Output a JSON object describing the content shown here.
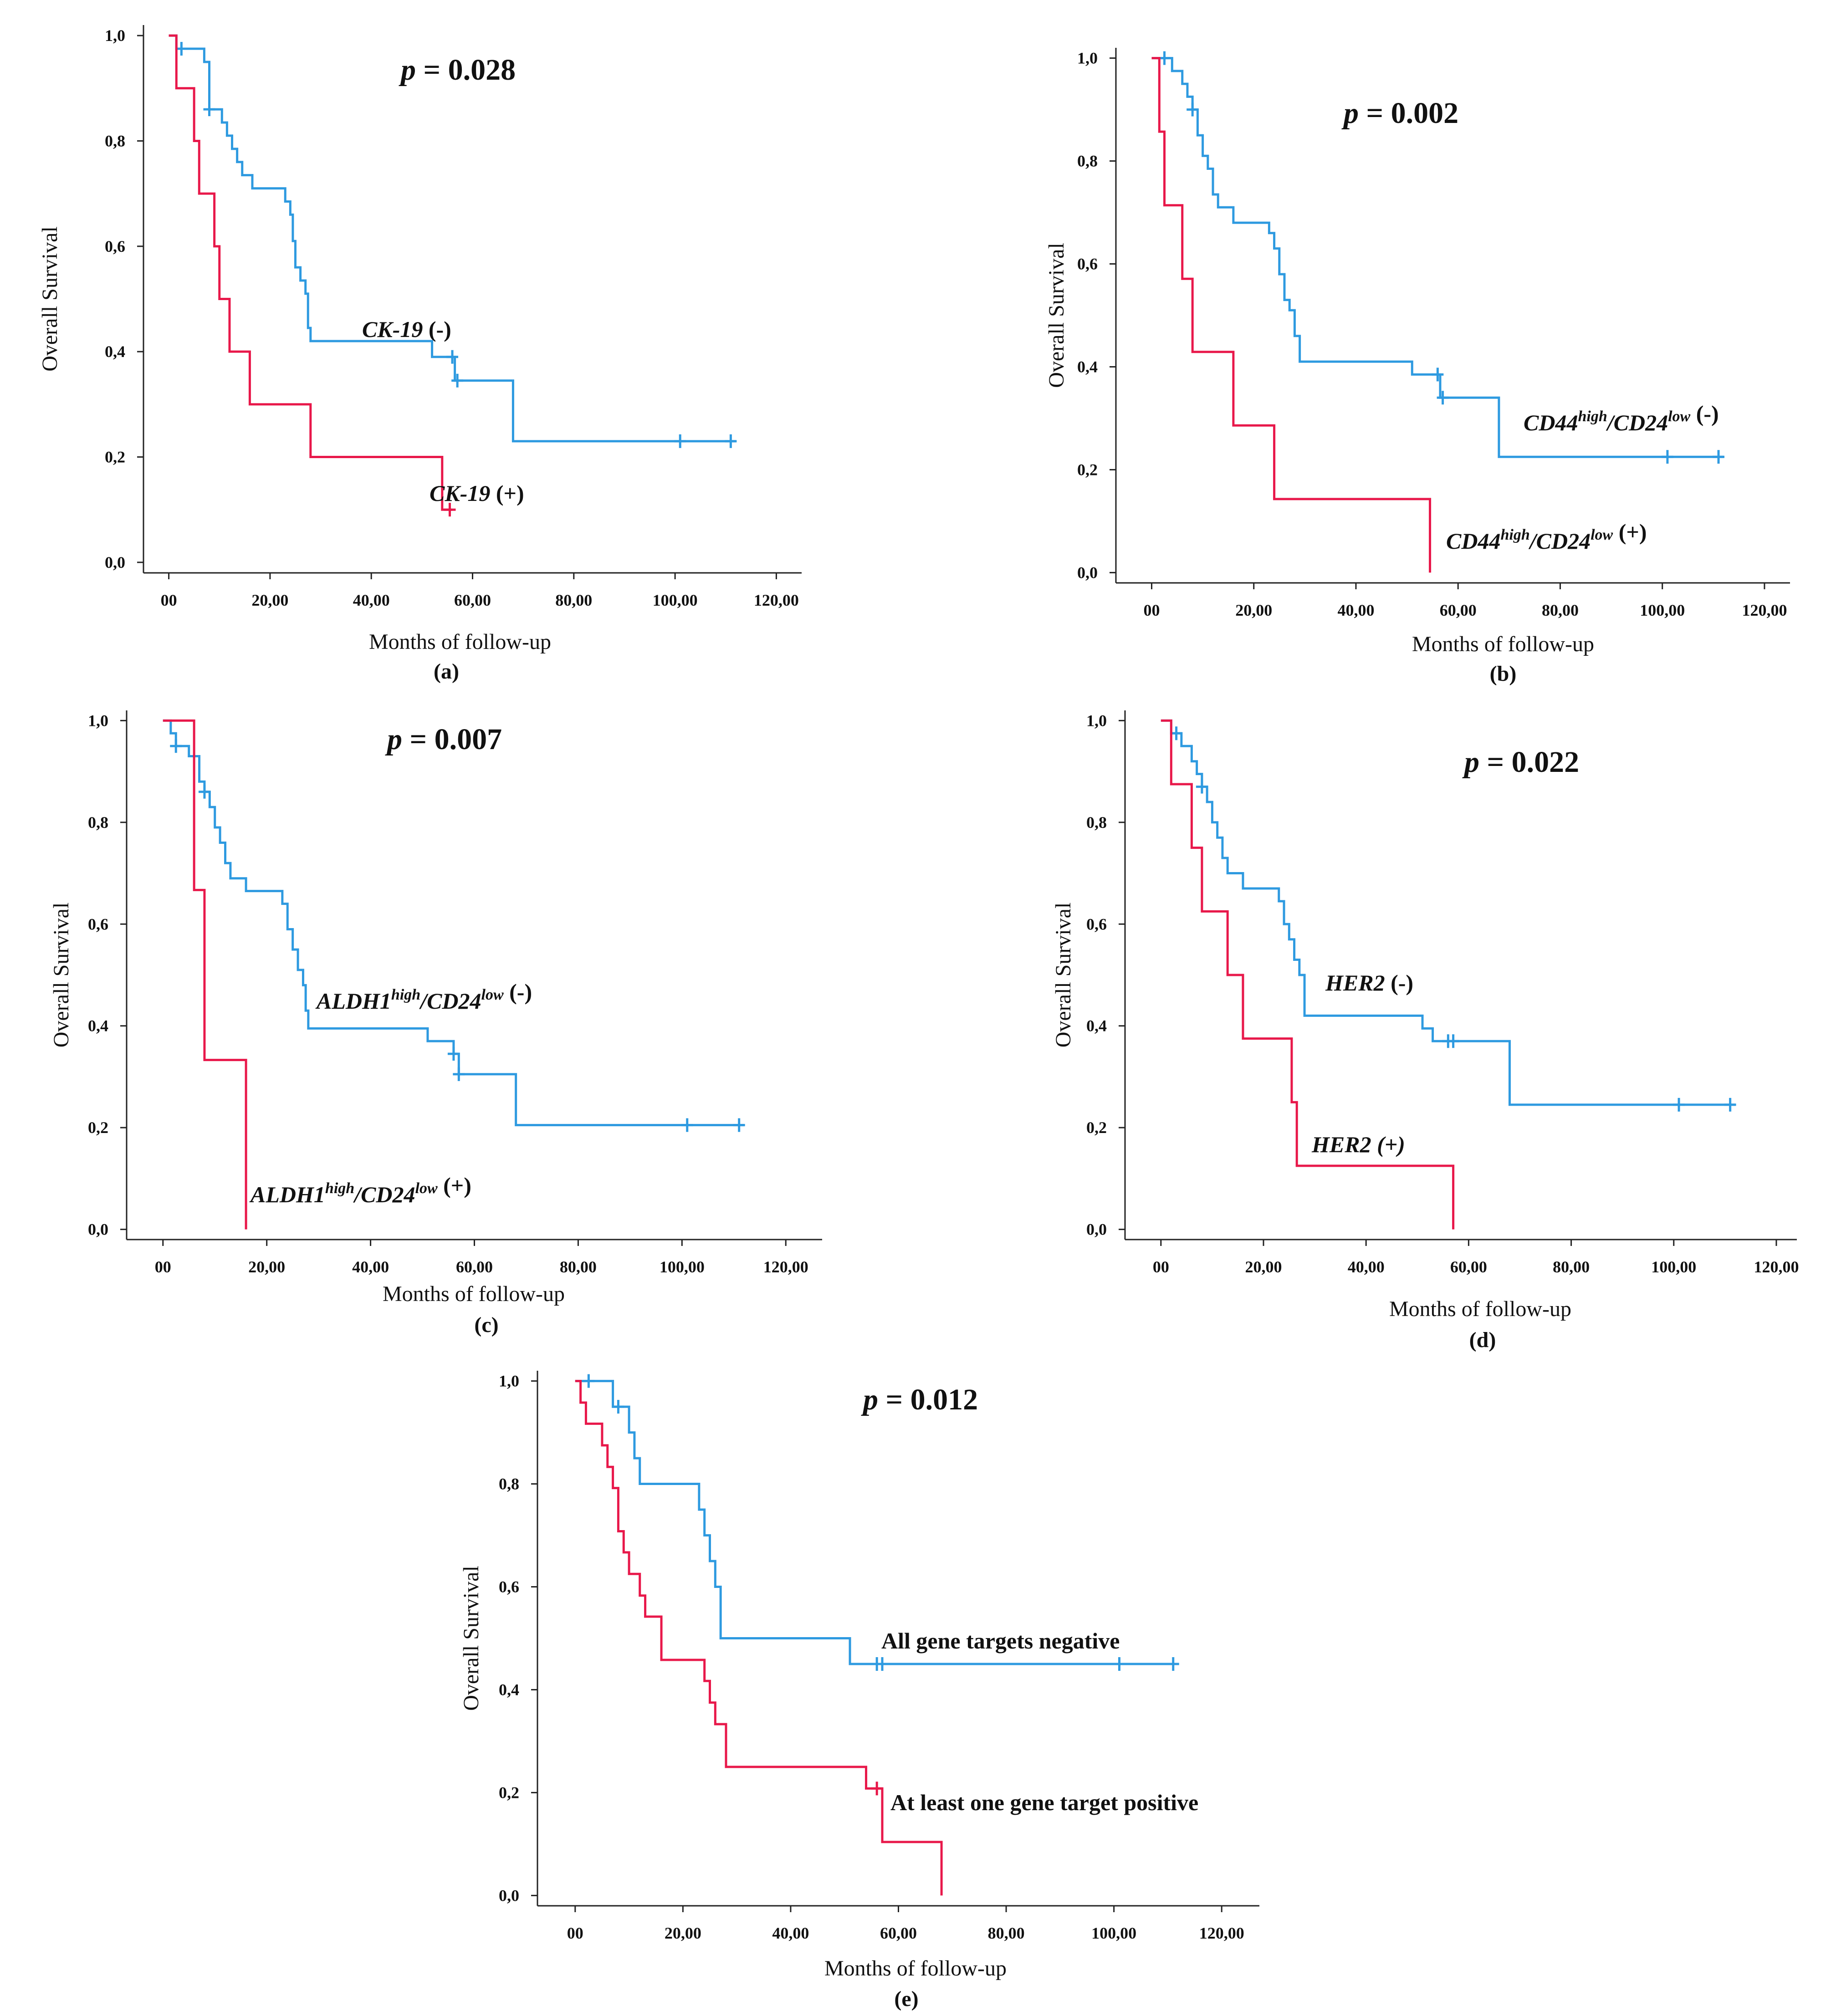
{
  "colors": {
    "negative": "#2e9ae0",
    "positive": "#e8184a",
    "axis": "#222222"
  },
  "chart_data": [
    {
      "id": "a",
      "type": "line",
      "caption": "(a)",
      "p_value_label": "p",
      "p_value_text": " = 0.028",
      "xlabel": "Months of follow-up",
      "ylabel": "Overall Survival",
      "xlim": [
        -5,
        125
      ],
      "ylim": [
        -0.02,
        1.02
      ],
      "xticks": [
        0,
        20,
        40,
        60,
        80,
        100,
        120
      ],
      "xtick_labels": [
        "00",
        "20,00",
        "40,00",
        "60,00",
        "80,00",
        "100,00",
        "120,00"
      ],
      "yticks": [
        0.0,
        0.2,
        0.4,
        0.6,
        0.8,
        1.0
      ],
      "ytick_labels": [
        "0,0",
        "0,2",
        "0,4",
        "0,6",
        "0,8",
        "1,0"
      ],
      "series": [
        {
          "name": "CK-19 (-)",
          "name_italic": "CK-19",
          "name_suffix": " (-)",
          "color_key": "negative",
          "steps": [
            [
              0,
              1.0
            ],
            [
              1.5,
              0.975
            ],
            [
              7,
              0.95
            ],
            [
              8,
              0.86
            ],
            [
              10.5,
              0.835
            ],
            [
              11.5,
              0.81
            ],
            [
              12.5,
              0.785
            ],
            [
              13.5,
              0.76
            ],
            [
              14.5,
              0.735
            ],
            [
              16.5,
              0.71
            ],
            [
              23,
              0.685
            ],
            [
              24,
              0.66
            ],
            [
              24.5,
              0.61
            ],
            [
              25,
              0.56
            ],
            [
              26,
              0.535
            ],
            [
              27,
              0.51
            ],
            [
              27.5,
              0.445
            ],
            [
              28,
              0.42
            ],
            [
              52,
              0.39
            ],
            [
              56.5,
              0.345
            ],
            [
              68,
              0.23
            ],
            [
              112,
              0.23
            ]
          ],
          "censored": [
            [
              2.5,
              0.975
            ],
            [
              8,
              0.86
            ],
            [
              56,
              0.39
            ],
            [
              57,
              0.345
            ],
            [
              101,
              0.23
            ],
            [
              111,
              0.23
            ]
          ]
        },
        {
          "name": "CK-19 (+)",
          "name_italic": "CK-19",
          "name_suffix": " (+)",
          "color_key": "positive",
          "steps": [
            [
              0,
              1.0
            ],
            [
              1.5,
              0.9
            ],
            [
              5,
              0.8
            ],
            [
              6,
              0.7
            ],
            [
              9,
              0.6
            ],
            [
              10,
              0.5
            ],
            [
              12,
              0.4
            ],
            [
              16,
              0.3
            ],
            [
              28,
              0.2
            ],
            [
              54,
              0.1
            ],
            [
              56,
              0.1
            ]
          ],
          "censored": [
            [
              55.5,
              0.1
            ]
          ]
        }
      ]
    },
    {
      "id": "b",
      "type": "line",
      "caption": "(b)",
      "p_value_label": "p",
      "p_value_text": " = 0.002",
      "xlabel": "Months of follow-up",
      "ylabel": "Overall Survival",
      "xlim": [
        -7,
        125
      ],
      "ylim": [
        -0.02,
        1.02
      ],
      "xticks": [
        0,
        20,
        40,
        60,
        80,
        100,
        120
      ],
      "xtick_labels": [
        "00",
        "20,00",
        "40,00",
        "60,00",
        "80,00",
        "100,00",
        "120,00"
      ],
      "yticks": [
        0.0,
        0.2,
        0.4,
        0.6,
        0.8,
        1.0
      ],
      "ytick_labels": [
        "0,0",
        "0,2",
        "0,4",
        "0,6",
        "0,8",
        "1,0"
      ],
      "series": [
        {
          "name": "CD44high/CD24low (-)",
          "name_italic": "CD44high/CD24low",
          "name_suffix": " (-)",
          "color_key": "negative",
          "steps": [
            [
              0,
              1.0
            ],
            [
              4,
              0.975
            ],
            [
              6,
              0.95
            ],
            [
              7,
              0.925
            ],
            [
              8,
              0.9
            ],
            [
              9,
              0.85
            ],
            [
              10,
              0.81
            ],
            [
              11,
              0.785
            ],
            [
              12,
              0.735
            ],
            [
              13,
              0.71
            ],
            [
              16,
              0.68
            ],
            [
              23,
              0.66
            ],
            [
              24,
              0.63
            ],
            [
              25,
              0.58
            ],
            [
              26,
              0.53
            ],
            [
              27,
              0.51
            ],
            [
              28,
              0.46
            ],
            [
              29,
              0.41
            ],
            [
              51,
              0.385
            ],
            [
              56.5,
              0.34
            ],
            [
              68,
              0.225
            ],
            [
              112,
              0.225
            ]
          ],
          "censored": [
            [
              2.5,
              1.0
            ],
            [
              8,
              0.9
            ],
            [
              56,
              0.385
            ],
            [
              57,
              0.34
            ],
            [
              101,
              0.225
            ],
            [
              111,
              0.225
            ]
          ]
        },
        {
          "name": "CD44high/CD24low (+)",
          "name_italic": "CD44high/CD24low",
          "name_suffix": " (+)",
          "color_key": "positive",
          "steps": [
            [
              0,
              1.0
            ],
            [
              1.5,
              0.857
            ],
            [
              2.5,
              0.714
            ],
            [
              6,
              0.571
            ],
            [
              8,
              0.429
            ],
            [
              16,
              0.286
            ],
            [
              24,
              0.143
            ],
            [
              54.5,
              0.0
            ]
          ],
          "censored": []
        }
      ]
    },
    {
      "id": "c",
      "type": "line",
      "caption": "(c)",
      "p_value_label": "p",
      "p_value_text": " = 0.007",
      "xlabel": "Months of follow-up",
      "ylabel": "Overall Survival",
      "xlim": [
        -7,
        127
      ],
      "ylim": [
        -0.02,
        1.02
      ],
      "xticks": [
        0,
        20,
        40,
        60,
        80,
        100,
        120
      ],
      "xtick_labels": [
        "00",
        "20,00",
        "40,00",
        "60,00",
        "80,00",
        "100,00",
        "120,00"
      ],
      "yticks": [
        0.0,
        0.2,
        0.4,
        0.6,
        0.8,
        1.0
      ],
      "ytick_labels": [
        "0,0",
        "0,2",
        "0,4",
        "0,6",
        "0,8",
        "1,0"
      ],
      "series": [
        {
          "name": "ALDH1high/CD24low (-)",
          "name_italic": "ALDH1high/CD24low",
          "name_suffix": " (-)",
          "color_key": "negative",
          "steps": [
            [
              0,
              1.0
            ],
            [
              1.5,
              0.975
            ],
            [
              2.5,
              0.95
            ],
            [
              5,
              0.93
            ],
            [
              7,
              0.88
            ],
            [
              8,
              0.86
            ],
            [
              9,
              0.83
            ],
            [
              10,
              0.79
            ],
            [
              11,
              0.76
            ],
            [
              12,
              0.72
            ],
            [
              13,
              0.69
            ],
            [
              16,
              0.665
            ],
            [
              23,
              0.64
            ],
            [
              24,
              0.59
            ],
            [
              25,
              0.55
            ],
            [
              26,
              0.51
            ],
            [
              27,
              0.48
            ],
            [
              27.5,
              0.43
            ],
            [
              28,
              0.395
            ],
            [
              51,
              0.37
            ],
            [
              56,
              0.345
            ],
            [
              57,
              0.305
            ],
            [
              68,
              0.205
            ],
            [
              112,
              0.205
            ]
          ],
          "censored": [
            [
              2.5,
              0.95
            ],
            [
              8,
              0.86
            ],
            [
              56,
              0.345
            ],
            [
              57,
              0.305
            ],
            [
              101,
              0.205
            ],
            [
              111,
              0.205
            ]
          ]
        },
        {
          "name": "ALDH1high/CD24low (+)",
          "name_italic": "ALDH1high/CD24low",
          "name_suffix": " (+)",
          "color_key": "positive",
          "steps": [
            [
              0,
              1.0
            ],
            [
              6,
              0.667
            ],
            [
              8,
              0.333
            ],
            [
              16,
              0.0
            ]
          ],
          "censored": []
        }
      ]
    },
    {
      "id": "d",
      "type": "line",
      "caption": "(d)",
      "p_value_label": "p",
      "p_value_text": " = 0.022",
      "xlabel": "Months of follow-up",
      "ylabel": "Overall Survival",
      "xlim": [
        -7,
        124
      ],
      "ylim": [
        -0.02,
        1.02
      ],
      "xticks": [
        0,
        20,
        40,
        60,
        80,
        100,
        120
      ],
      "xtick_labels": [
        "00",
        "20,00",
        "40,00",
        "60,00",
        "80,00",
        "100,00",
        "120,00"
      ],
      "yticks": [
        0.0,
        0.2,
        0.4,
        0.6,
        0.8,
        1.0
      ],
      "ytick_labels": [
        "0,0",
        "0,2",
        "0,4",
        "0,6",
        "0,8",
        "1,0"
      ],
      "series": [
        {
          "name": "HER2 (-)",
          "name_italic": "HER2",
          "name_suffix": " (-)",
          "color_key": "negative",
          "steps": [
            [
              0,
              1.0
            ],
            [
              2,
              0.975
            ],
            [
              4,
              0.95
            ],
            [
              6,
              0.92
            ],
            [
              7,
              0.895
            ],
            [
              8,
              0.87
            ],
            [
              9,
              0.84
            ],
            [
              10,
              0.8
            ],
            [
              11,
              0.77
            ],
            [
              12,
              0.73
            ],
            [
              13,
              0.7
            ],
            [
              16,
              0.67
            ],
            [
              23,
              0.645
            ],
            [
              24,
              0.6
            ],
            [
              25,
              0.57
            ],
            [
              26,
              0.53
            ],
            [
              27,
              0.5
            ],
            [
              28,
              0.42
            ],
            [
              51,
              0.395
            ],
            [
              53,
              0.37
            ],
            [
              68,
              0.245
            ],
            [
              112,
              0.245
            ]
          ],
          "censored": [
            [
              3,
              0.975
            ],
            [
              8,
              0.87
            ],
            [
              56,
              0.37
            ],
            [
              57,
              0.37
            ],
            [
              101,
              0.245
            ],
            [
              111,
              0.245
            ]
          ]
        },
        {
          "name": "HER2 (+)",
          "name_italic": "HER2 (+)",
          "name_suffix": "",
          "color_key": "positive",
          "steps": [
            [
              0,
              1.0
            ],
            [
              2,
              0.875
            ],
            [
              6,
              0.75
            ],
            [
              8,
              0.625
            ],
            [
              13,
              0.5
            ],
            [
              16,
              0.375
            ],
            [
              25.5,
              0.25
            ],
            [
              26.5,
              0.125
            ],
            [
              57,
              0.0
            ]
          ],
          "censored": []
        }
      ]
    },
    {
      "id": "e",
      "type": "line",
      "caption": "(e)",
      "p_value_label": "p",
      "p_value_text": " = 0.012",
      "xlabel": "Months of follow-up",
      "ylabel": "Overall Survival",
      "xlim": [
        -7,
        127
      ],
      "ylim": [
        -0.02,
        1.02
      ],
      "xticks": [
        0,
        20,
        40,
        60,
        80,
        100,
        120
      ],
      "xtick_labels": [
        "00",
        "20,00",
        "40,00",
        "60,00",
        "80,00",
        "100,00",
        "120,00"
      ],
      "yticks": [
        0.0,
        0.2,
        0.4,
        0.6,
        0.8,
        1.0
      ],
      "ytick_labels": [
        "0,0",
        "0,2",
        "0,4",
        "0,6",
        "0,8",
        "1,0"
      ],
      "series": [
        {
          "name": "All gene targets negative",
          "name_italic": "",
          "name_suffix": "All gene targets negative",
          "color_key": "negative",
          "steps": [
            [
              0,
              1.0
            ],
            [
              7,
              0.95
            ],
            [
              10,
              0.9
            ],
            [
              11,
              0.85
            ],
            [
              12,
              0.8
            ],
            [
              23,
              0.75
            ],
            [
              24,
              0.7
            ],
            [
              25,
              0.65
            ],
            [
              26,
              0.6
            ],
            [
              27,
              0.5
            ],
            [
              51,
              0.45
            ],
            [
              112,
              0.45
            ]
          ],
          "censored": [
            [
              2.5,
              1.0
            ],
            [
              8,
              0.95
            ],
            [
              56,
              0.45
            ],
            [
              57,
              0.45
            ],
            [
              101,
              0.45
            ],
            [
              111,
              0.45
            ]
          ]
        },
        {
          "name": "At least one gene target positive",
          "name_italic": "",
          "name_suffix": "At least one gene target positive",
          "color_key": "positive",
          "steps": [
            [
              0,
              1.0
            ],
            [
              1,
              0.958
            ],
            [
              2,
              0.917
            ],
            [
              5,
              0.875
            ],
            [
              6,
              0.833
            ],
            [
              7,
              0.792
            ],
            [
              8,
              0.708
            ],
            [
              9,
              0.667
            ],
            [
              10,
              0.625
            ],
            [
              12,
              0.583
            ],
            [
              13,
              0.542
            ],
            [
              16,
              0.458
            ],
            [
              24,
              0.417
            ],
            [
              25,
              0.375
            ],
            [
              26,
              0.333
            ],
            [
              28,
              0.25
            ],
            [
              54,
              0.208
            ],
            [
              57,
              0.104
            ],
            [
              68,
              0.0
            ]
          ],
          "censored": [
            [
              56,
              0.208
            ]
          ]
        }
      ]
    }
  ]
}
